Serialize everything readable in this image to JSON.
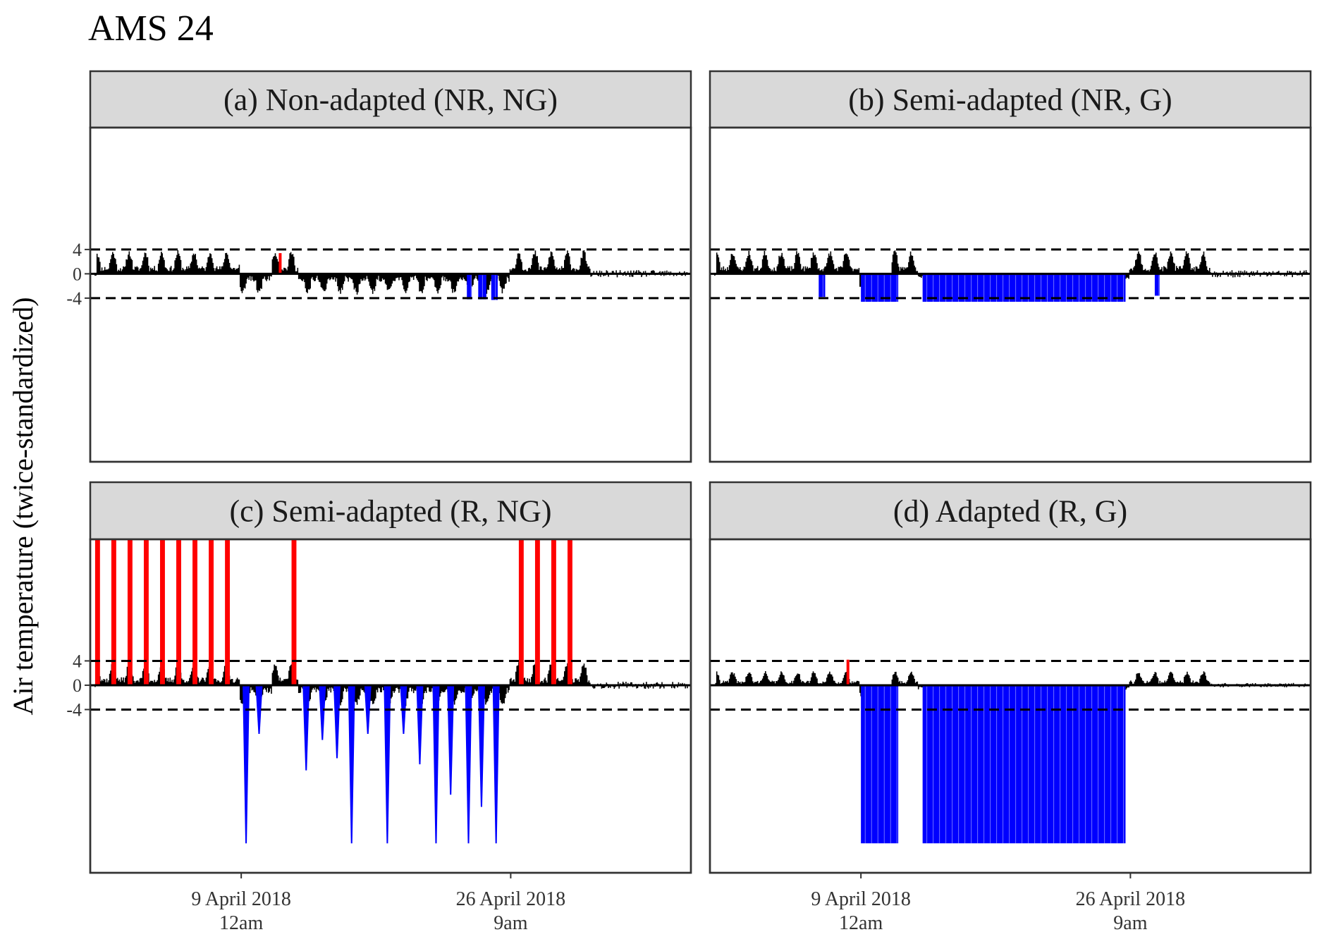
{
  "title": "AMS 24",
  "colors": {
    "normal": "#000000",
    "high_exceedance": "#ff0000",
    "low_exceedance": "#0000ff",
    "strip_background": "#d9d9d9",
    "panel_border": "#333333"
  },
  "chart_data": {
    "type": "bar",
    "title": "AMS 24",
    "ylabel": "Air temperature (twice-standardized)",
    "xlabel": "",
    "facet_layout": "2x2",
    "x_axis": {
      "start_day": 0,
      "end_day": 37,
      "tick_positions_days": [
        9.3,
        25.9
      ],
      "tick_labels": [
        {
          "line1": "9 April 2018",
          "line2": "12am"
        },
        {
          "line1": "26 April 2018",
          "line2": "9am"
        }
      ]
    },
    "y_axis": {
      "tick_values": [
        4,
        0,
        -4
      ],
      "tick_labels": [
        "4",
        "0",
        "-4"
      ],
      "reference_lines": [
        4,
        -4
      ],
      "row_ranges": [
        [
          -26,
          26
        ],
        [
          -26,
          26
        ]
      ]
    },
    "grid": false,
    "legend": "none",
    "panels": [
      {
        "label": "(a) Non-adapted (NR, NG)",
        "row": 0,
        "col": 0,
        "seed": 11,
        "scale": 1.0,
        "positive_days": [
          [
            0.4,
            9.2
          ],
          [
            11.2,
            12.8
          ],
          [
            25.8,
            30.8
          ]
        ],
        "negative_days": [
          [
            9.2,
            11.2
          ],
          [
            12.8,
            25.8
          ]
        ],
        "high_spikes": [
          {
            "day": 11.7,
            "value": 3.4
          }
        ],
        "low_blocks": [
          [
            23.2,
            23.5,
            -4.2
          ],
          [
            23.9,
            24.4,
            -4.2
          ],
          [
            24.7,
            25.1,
            -4.3
          ]
        ]
      },
      {
        "label": "(b) Semi-adapted (NR, G)",
        "row": 0,
        "col": 1,
        "seed": 23,
        "scale": 1.0,
        "positive_days": [
          [
            0.4,
            9.2
          ],
          [
            11.2,
            12.8
          ],
          [
            25.8,
            30.8
          ]
        ],
        "negative_days": [
          [
            9.2,
            11.2
          ],
          [
            12.8,
            25.8
          ]
        ],
        "high_spikes": [],
        "low_blocks": [
          [
            6.7,
            7.1,
            -3.8
          ],
          [
            9.3,
            11.6,
            -4.6
          ],
          [
            13.1,
            25.6,
            -4.6
          ],
          [
            27.4,
            27.7,
            -3.6
          ]
        ]
      },
      {
        "label": "(c) Semi-adapted (R, NG)",
        "row": 1,
        "col": 0,
        "seed": 37,
        "scale": 1.0,
        "positive_days": [
          [
            0.4,
            9.2
          ],
          [
            11.2,
            12.8
          ],
          [
            25.8,
            30.8
          ]
        ],
        "negative_days": [
          [
            9.2,
            11.2
          ],
          [
            12.8,
            25.8
          ]
        ],
        "high_bars": [
          [
            0.3,
            0.6
          ],
          [
            1.3,
            1.6
          ],
          [
            2.3,
            2.6
          ],
          [
            3.3,
            3.6
          ],
          [
            4.3,
            4.6
          ],
          [
            5.3,
            5.6
          ],
          [
            6.3,
            6.6
          ],
          [
            7.3,
            7.6
          ],
          [
            8.3,
            8.6
          ],
          [
            12.4,
            12.7
          ],
          [
            26.4,
            26.7
          ],
          [
            27.4,
            27.7
          ],
          [
            28.4,
            28.7
          ],
          [
            29.4,
            29.7
          ]
        ],
        "low_spikes": [
          [
            9.6,
            -26
          ],
          [
            10.4,
            -8
          ],
          [
            13.3,
            -14
          ],
          [
            14.3,
            -9
          ],
          [
            15.2,
            -12
          ],
          [
            16.1,
            -26
          ],
          [
            17.1,
            -8
          ],
          [
            18.3,
            -26
          ],
          [
            19.3,
            -8
          ],
          [
            20.3,
            -13
          ],
          [
            21.3,
            -26
          ],
          [
            22.2,
            -18
          ],
          [
            23.3,
            -26
          ],
          [
            24.1,
            -20
          ],
          [
            25.0,
            -26
          ]
        ]
      },
      {
        "label": "(d) Adapted (R, G)",
        "row": 1,
        "col": 1,
        "seed": 41,
        "scale": 0.6,
        "positive_days": [
          [
            0.4,
            9.2
          ],
          [
            11.2,
            12.8
          ],
          [
            25.8,
            30.8
          ]
        ],
        "negative_days": [
          [
            9.2,
            11.2
          ],
          [
            12.8,
            25.8
          ]
        ],
        "high_spikes": [
          {
            "day": 8.5,
            "value": 4.2
          }
        ],
        "low_blocks": [
          [
            9.3,
            11.6,
            -26
          ],
          [
            13.1,
            25.6,
            -26
          ]
        ]
      }
    ]
  }
}
